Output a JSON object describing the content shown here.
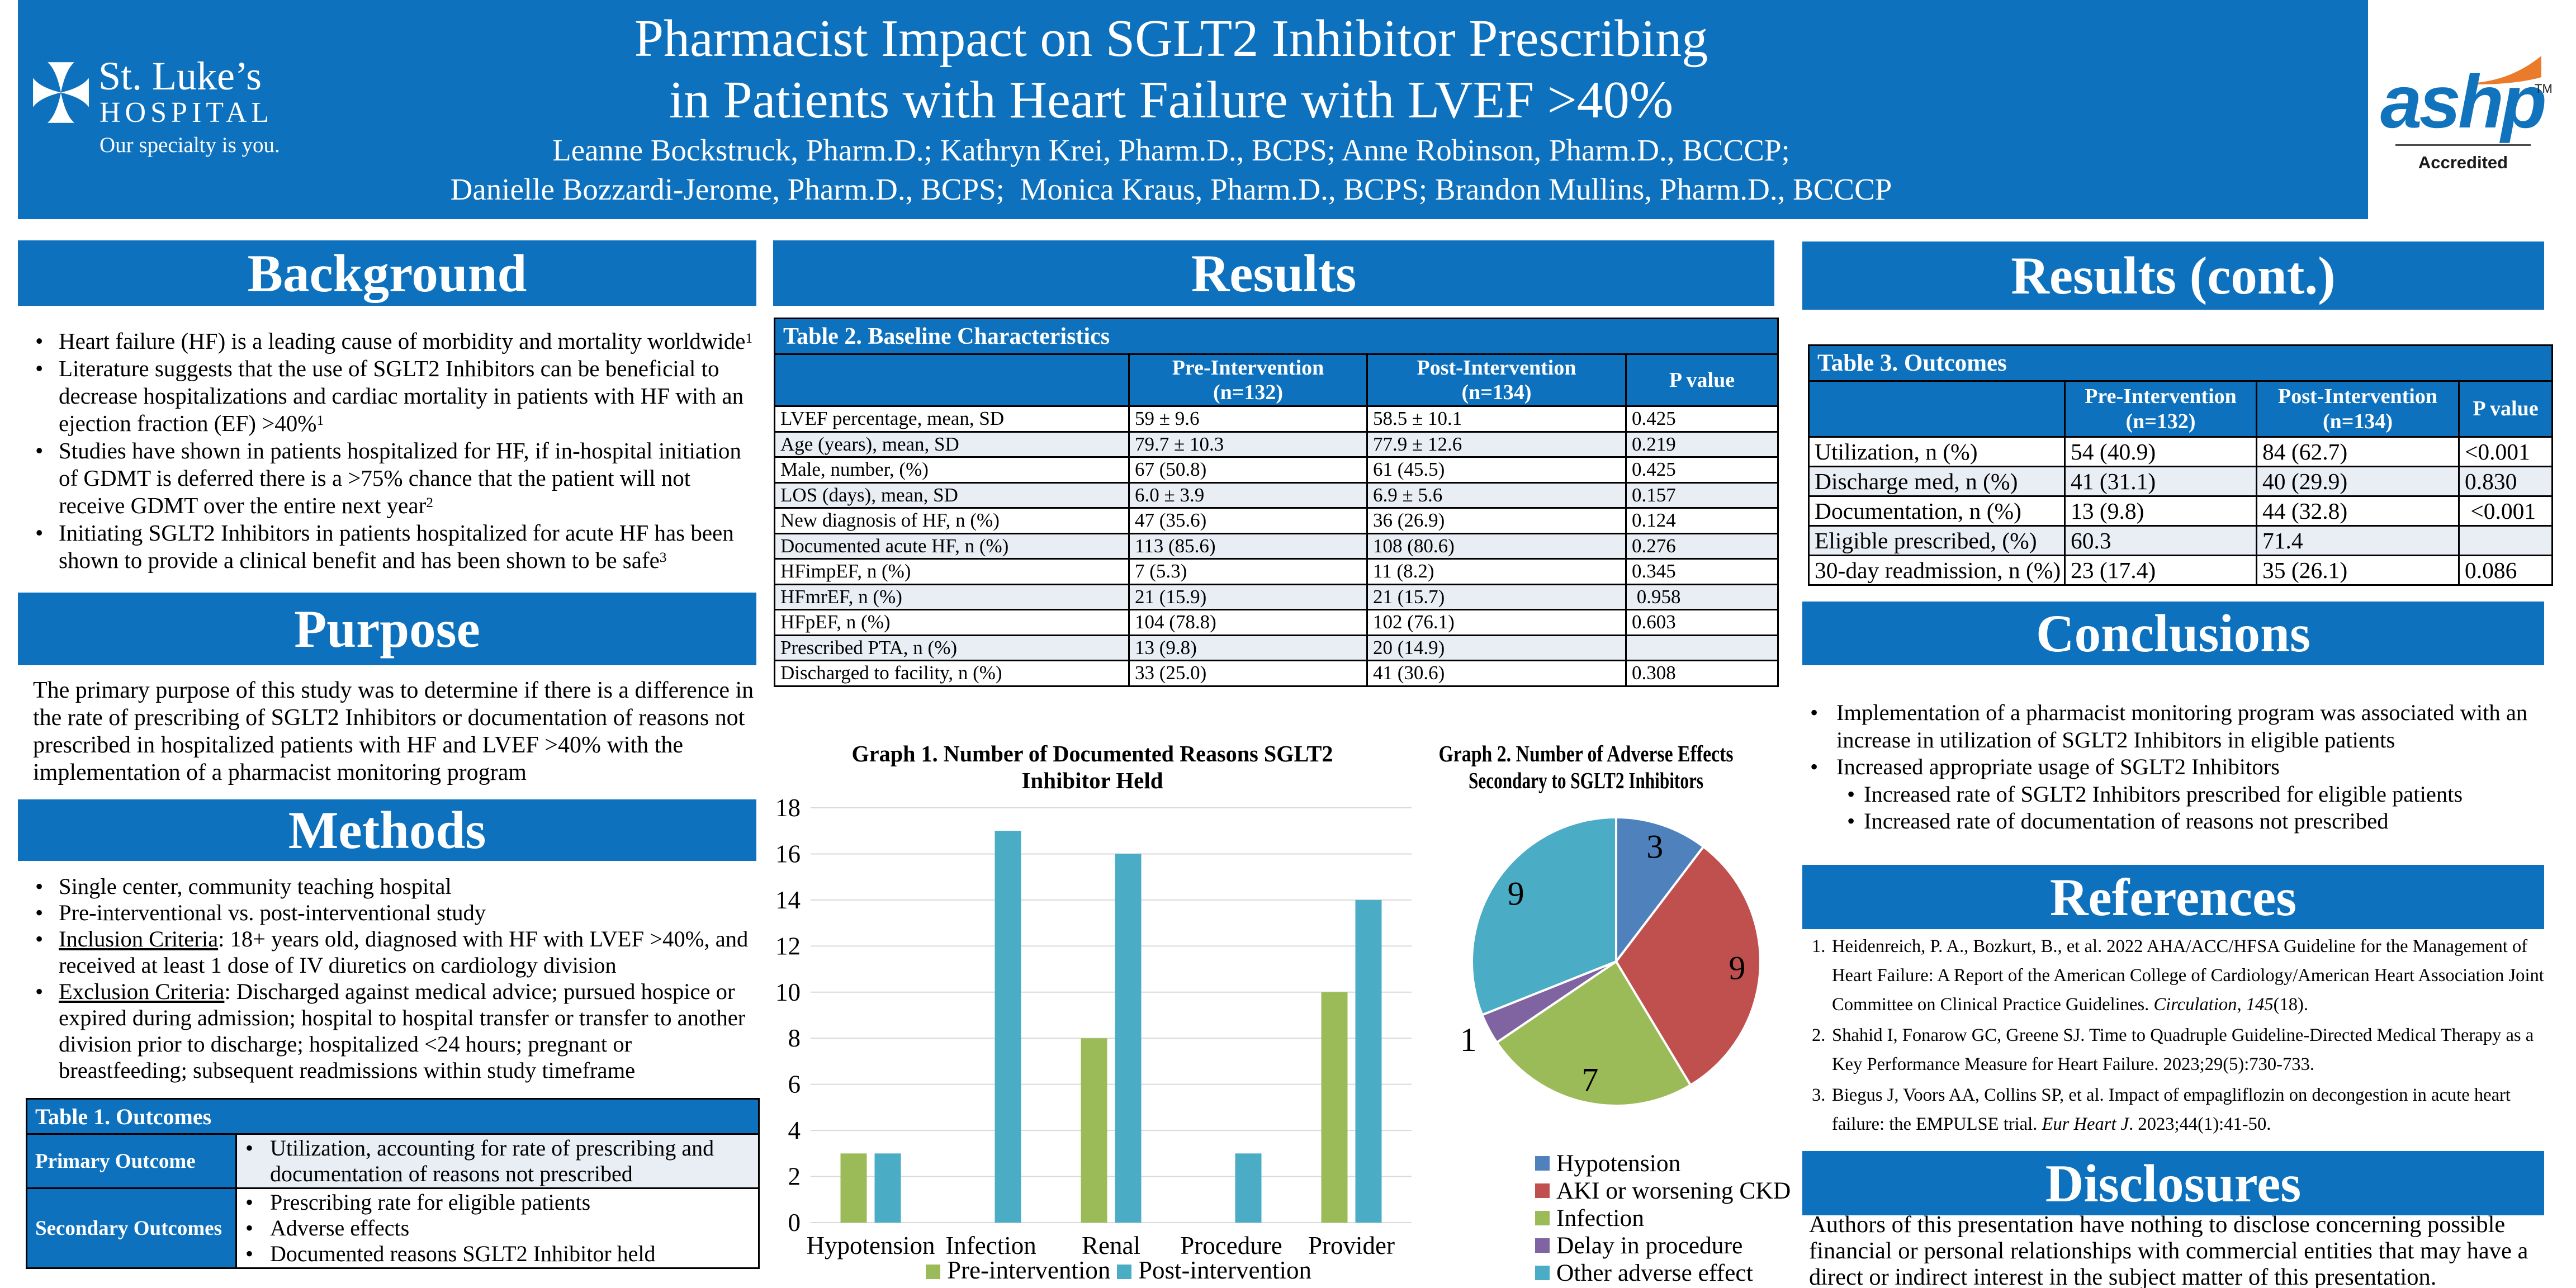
{
  "colors": {
    "blue": "#0D71BE",
    "stripe": "#E9EDF4",
    "grid": "#D9D9D9",
    "ashp_blue": "#1273BD",
    "ashp_orange": "#E97B2A",
    "bar_pre_green": "#9BBB59",
    "bar_post_teal": "#4BACC6"
  },
  "banner": {
    "title_line1": "Pharmacist Impact on SGLT2 Inhibitor Prescribing",
    "title_line2": "in Patients with Heart Failure with LVEF >40%",
    "authors_line1": "Leanne Bockstruck, Pharm.D.; Kathryn Krei, Pharm.D., BCPS; Anne Robinson, Pharm.D., BCCCP;",
    "authors_line2": "Danielle Bozzardi-Jerome, Pharm.D., BCPS;  Monica Kraus, Pharm.D., BCPS; Brandon Mullins, Pharm.D., BCCCP"
  },
  "hospital_logo": {
    "name_top": "St. Luke’s",
    "name_bottom": "HOSPITAL",
    "tagline": "Our specialty is you."
  },
  "ashp_logo": {
    "wordmark": "ashp",
    "tm": "TM",
    "label": "Accredited"
  },
  "sections": {
    "background": {
      "title": "Background",
      "bullets": [
        "Heart failure (HF) is a leading cause of morbidity and mortality worldwide<sup>1</sup>",
        "Literature suggests that the use of SGLT2 Inhibitors can be beneficial to decrease hospitalizations and cardiac mortality in patients with HF with an ejection fraction (EF) &gt;40%<sup>1</sup>",
        "Studies have shown in patients hospitalized for HF, if in-hospital initiation of GDMT is deferred there is a &gt;75% chance that the patient will not receive GDMT over the entire next year<sup>2</sup>",
        "Initiating SGLT2 Inhibitors in patients hospitalized for acute HF has been shown to provide a clinical benefit and has been shown to be safe<sup>3</sup>"
      ]
    },
    "purpose": {
      "title": "Purpose",
      "text": "The primary purpose of this study was to determine if there is a difference in the rate of prescribing of SGLT2 Inhibitors or documentation of reasons not prescribed in hospitalized patients with HF and LVEF >40% with the implementation of a pharmacist monitoring program"
    },
    "methods": {
      "title": "Methods",
      "bullets": [
        "Single center, community teaching hospital",
        "Pre-interventional vs. post-interventional study",
        "<u>Inclusion Criteria</u>: 18+ years old, diagnosed with HF with LVEF &gt;40%, and received at least 1 dose of IV diuretics on cardiology division",
        "<u>Exclusion Criteria</u>: Discharged against medical advice; pursued hospice or expired during admission; hospital to hospital transfer or transfer to another division prior to discharge; hospitalized &lt;24 hours; pregnant or breastfeeding; subsequent readmissions within study timeframe"
      ]
    },
    "results": {
      "title": "Results"
    },
    "results_cont": {
      "title": "Results (cont.)"
    },
    "conclusions": {
      "title": "Conclusions",
      "bullets": [
        {
          "text": "Implementation of a pharmacist monitoring program was associated with an increase in utilization of SGLT2 Inhibitors in eligible patients",
          "sub": false
        },
        {
          "text": "Increased appropriate usage of SGLT2 Inhibitors",
          "sub": false
        },
        {
          "text": "Increased rate of SGLT2 Inhibitors prescribed for eligible patients",
          "sub": true
        },
        {
          "text": "Increased rate of documentation of reasons not prescribed",
          "sub": true
        }
      ]
    },
    "references": {
      "title": "References",
      "items": [
        "Heidenreich, P. A., Bozkurt, B., et al. 2022 AHA/ACC/HFSA Guideline for the Management of Heart Failure: A Report of the American College of Cardiology/American Heart Association Joint Committee on Clinical Practice Guidelines. <i>Circulation</i>, <i>145</i>(18).",
        "Shahid I, Fonarow GC, Greene SJ. Time to Quadruple Guideline-Directed Medical Therapy as a Key Performance Measure for Heart Failure. 2023;29(5):730-733.",
        "Biegus J, Voors AA, Collins SP, et al. Impact of empagliflozin on decongestion in acute heart failure: the EMPULSE trial. <i>Eur Heart J</i>. 2023;44(1):41-50."
      ]
    },
    "disclosures": {
      "title": "Disclosures",
      "text": "Authors of this presentation have nothing to disclose concerning possible financial or personal relationships with commercial entities that may have a direct or indirect interest in the subject matter of this presentation."
    }
  },
  "tables": {
    "table1": {
      "title": "Table 1. Outcomes",
      "rows": [
        {
          "label": "Primary Outcome",
          "shaded": true,
          "bullets": [
            "Utilization, accounting for rate of prescribing and documentation of reasons not prescribed"
          ]
        },
        {
          "label": "Secondary Outcomes",
          "shaded": false,
          "bullets": [
            "Prescribing rate for eligible patients",
            "Adverse effects",
            "Documented reasons SGLT2 Inhibitor held"
          ]
        }
      ]
    },
    "table2": {
      "title": "Table 2. Baseline Characteristics",
      "col_headers": [
        "",
        "Pre-Intervention\n(n=132)",
        "Post-Intervention\n(n=134)",
        "P value"
      ],
      "rows": [
        [
          "LVEF percentage, mean, SD",
          "59 ± 9.6",
          "58.5 ± 10.1",
          "0.425"
        ],
        [
          "Age (years), mean, SD",
          "79.7 ± 10.3",
          "77.9 ± 12.6",
          "0.219"
        ],
        [
          "Male, number, (%)",
          "67 (50.8)",
          "61 (45.5)",
          "0.425"
        ],
        [
          "LOS (days), mean, SD",
          "6.0 ± 3.9",
          "6.9 ± 5.6",
          "0.157"
        ],
        [
          "New diagnosis of HF, n (%)",
          "47 (35.6)",
          "36 (26.9)",
          "0.124"
        ],
        [
          "Documented acute HF, n (%)",
          "113 (85.6)",
          "108 (80.6)",
          "0.276"
        ],
        [
          "HFimpEF, n (%)",
          "7 (5.3)",
          "11 (8.2)",
          "0.345"
        ],
        [
          "HFmrEF, n (%)",
          "21 (15.9)",
          "21 (15.7)",
          " 0.958"
        ],
        [
          "HFpEF, n (%)",
          "104 (78.8)",
          "102 (76.1)",
          "0.603"
        ],
        [
          "Prescribed PTA, n (%)",
          "13 (9.8)",
          "20 (14.9)",
          ""
        ],
        [
          "Discharged to facility, n (%)",
          "33 (25.0)",
          "41 (30.6)",
          "0.308"
        ]
      ]
    },
    "table3": {
      "title": "Table 3. Outcomes",
      "col_headers": [
        "",
        "Pre-Intervention\n(n=132)",
        "Post-Intervention\n(n=134)",
        "P value"
      ],
      "rows": [
        [
          "Utilization, n (%)",
          "54 (40.9)",
          "84 (62.7)",
          "<0.001"
        ],
        [
          "Discharge med, n (%)",
          "41 (31.1)",
          "40 (29.9)",
          "0.830"
        ],
        [
          "Documentation, n (%)",
          "13 (9.8)",
          "44 (32.8)",
          " <0.001"
        ],
        [
          "Eligible prescribed, (%)",
          "60.3",
          "71.4",
          ""
        ],
        [
          "30-day readmission, n (%)",
          "23 (17.4)",
          "35 (26.1)",
          "0.086"
        ]
      ]
    }
  },
  "chart_data": [
    {
      "type": "bar",
      "title": "Graph 1. Number of Documented Reasons SGLT2 Inhibitor Held",
      "title_lines": [
        "Graph 1. Number of Documented Reasons SGLT2",
        "Inhibitor Held"
      ],
      "categories": [
        "Hypotension",
        "Infection",
        "Renal",
        "Procedure",
        "Provider"
      ],
      "series": [
        {
          "name": "Pre-intervention",
          "color": "#9BBB59",
          "values": [
            3,
            0,
            8,
            0,
            10
          ]
        },
        {
          "name": "Post-intervention",
          "color": "#4BACC6",
          "values": [
            3,
            17,
            16,
            3,
            14
          ]
        }
      ],
      "xlabel": "",
      "ylabel": "",
      "ylim": [
        0,
        18
      ],
      "ytick_step": 2,
      "grid": true,
      "legend_position": "bottom"
    },
    {
      "type": "pie",
      "title": "Graph 2.  Number of Adverse Effects Secondary to SGLT2 Inhibitors",
      "title_lines": [
        "Graph 2.  Number of Adverse Effects",
        "Secondary to SGLT2 Inhibitors"
      ],
      "labels": [
        "Hypotension",
        "AKI or worsening CKD",
        "Infection",
        "Delay in procedure",
        "Other adverse effect"
      ],
      "values": [
        3,
        9,
        7,
        1,
        9
      ],
      "colors": [
        "#4F81BD",
        "#C0504D",
        "#9BBB59",
        "#8064A2",
        "#4BACC6"
      ],
      "start_angle_deg": 0,
      "direction": "clockwise",
      "legend_position": "bottom-left"
    }
  ]
}
